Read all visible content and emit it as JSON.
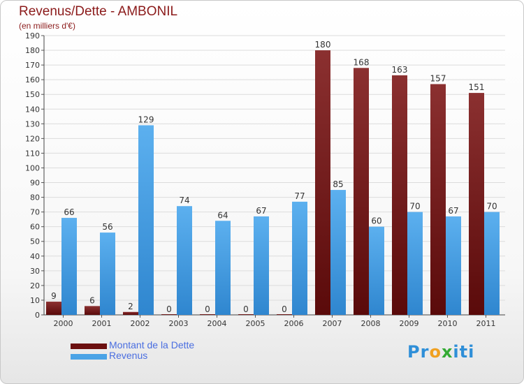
{
  "chart_data": {
    "type": "bar",
    "title": "Revenus/Dette - AMBONIL",
    "subtitle": "(en milliers d'€)",
    "categories": [
      "2000",
      "2001",
      "2002",
      "2003",
      "2004",
      "2005",
      "2006",
      "2007",
      "2008",
      "2009",
      "2010",
      "2011"
    ],
    "series": [
      {
        "name": "Montant de la Dette",
        "color": "#6b0f0f",
        "values": [
          9,
          6,
          2,
          0,
          0,
          0,
          0,
          180,
          168,
          163,
          157,
          151
        ]
      },
      {
        "name": "Revenus",
        "color": "#4aa3e6",
        "values": [
          66,
          56,
          129,
          74,
          64,
          67,
          77,
          85,
          60,
          70,
          67,
          70
        ]
      }
    ],
    "ylim": [
      0,
      190
    ],
    "yticks": [
      0,
      10,
      20,
      30,
      40,
      50,
      60,
      70,
      80,
      90,
      100,
      110,
      120,
      130,
      140,
      150,
      160,
      170,
      180,
      190
    ],
    "grid": true,
    "legend_position": "bottom-left"
  },
  "logo": {
    "p1": "Pr",
    "o": "o",
    "x": "x",
    "p2": "iti"
  }
}
